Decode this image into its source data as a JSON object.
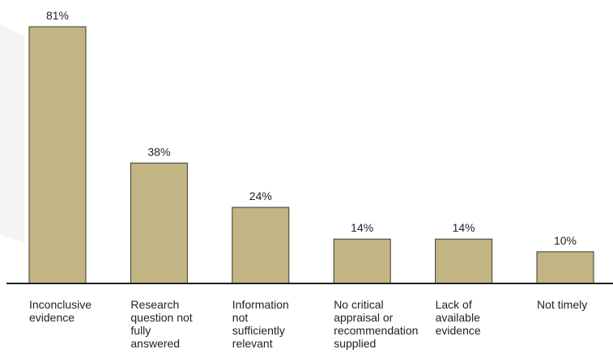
{
  "chart_data": {
    "type": "bar",
    "categories": [
      "Inconclusive evidence",
      "Research question not fully answered",
      "Information not sufficiently relevant",
      "No critical appraisal or recommendation supplied",
      "Lack of available evidence",
      "Not timely"
    ],
    "values": [
      81,
      38,
      24,
      14,
      14,
      10
    ],
    "value_labels": [
      "81%",
      "38%",
      "24%",
      "14%",
      "14%",
      "10%"
    ],
    "color": "#c2b583"
  }
}
